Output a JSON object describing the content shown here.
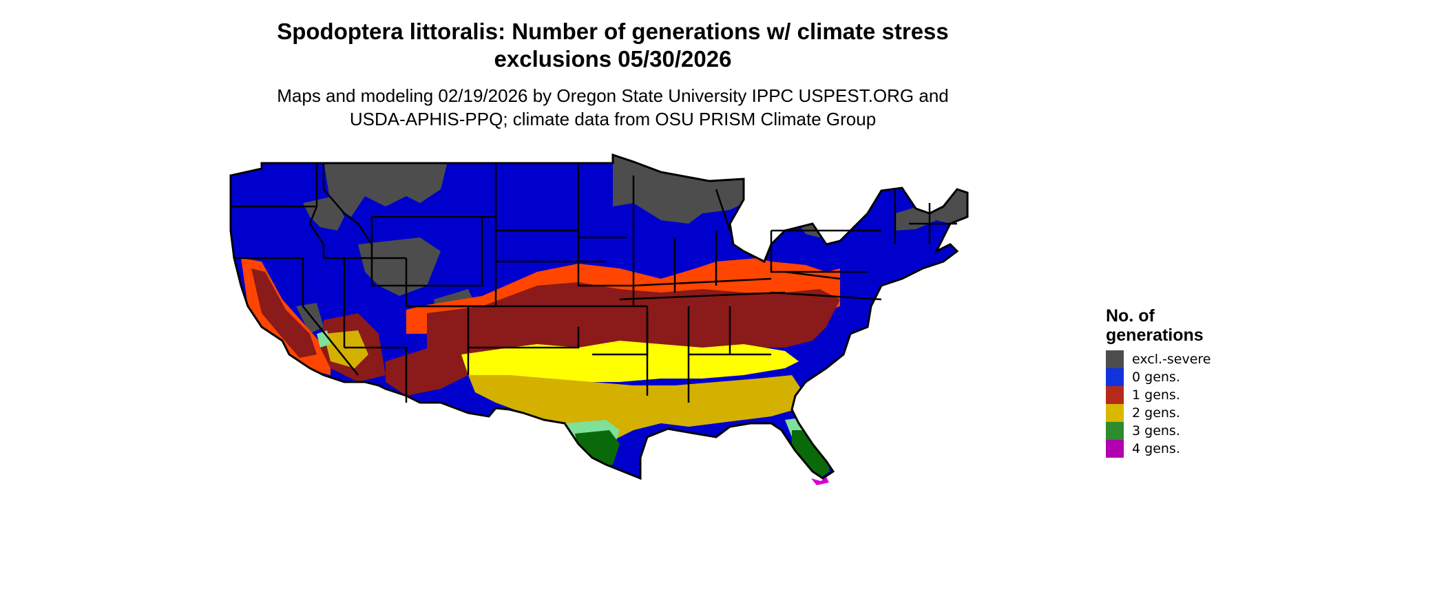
{
  "title_line1": "Spodoptera littoralis: Number of generations w/ climate stress",
  "title_line2": "exclusions 05/30/2026",
  "subtitle_line1": "Maps and modeling 02/19/2026 by Oregon State University IPPC USPEST.ORG and",
  "subtitle_line2": "USDA-APHIS-PPQ; climate data from OSU PRISM Climate Group",
  "legend": {
    "title_line1": "No. of",
    "title_line2": "generations",
    "items": [
      {
        "label": "excl.-severe",
        "color": "#4d4d4d"
      },
      {
        "label": "0 gens.",
        "color": "#1133dd"
      },
      {
        "label": "1 gens.",
        "color": "#b52a1c"
      },
      {
        "label": "2 gens.",
        "color": "#d9b800"
      },
      {
        "label": "3 gens.",
        "color": "#2e8b2e"
      },
      {
        "label": "4 gens.",
        "color": "#b000b0"
      }
    ]
  },
  "colors": {
    "excluded": "#4d4d4d",
    "zero": "#0000cc",
    "one_light": "#ff4500",
    "one_dark": "#8b1a1a",
    "two_light": "#ffff00",
    "two_dark": "#d4b000",
    "three_light": "#7fe09a",
    "three_dark": "#0a6a0a",
    "four": "#d600d6"
  }
}
